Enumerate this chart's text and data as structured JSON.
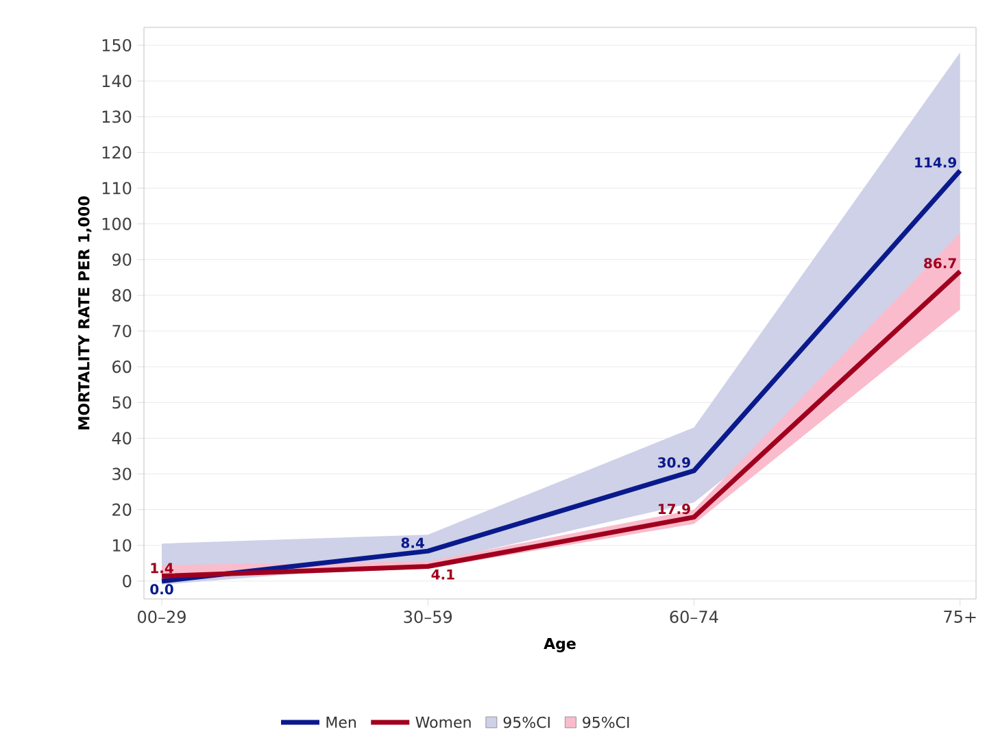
{
  "chart_data": {
    "type": "line",
    "xlabel": "Age",
    "ylabel": "MORTALITY RATE PER 1,000",
    "categories": [
      "00–29",
      "30–59",
      "60–74",
      "75+"
    ],
    "series": [
      {
        "name": "Men",
        "color": "#0a1a8c",
        "values": [
          0.0,
          8.4,
          30.9,
          114.9
        ],
        "value_labels": [
          "0.0",
          "8.4",
          "30.9",
          "114.9"
        ],
        "lower": [
          -1,
          5,
          22,
          82
        ],
        "upper": [
          10.5,
          13,
          43,
          148
        ]
      },
      {
        "name": "Women",
        "color": "#a0001e",
        "values": [
          1.4,
          4.1,
          17.9,
          86.7
        ],
        "value_labels": [
          "1.4",
          "4.1",
          "17.9",
          "86.7"
        ],
        "lower": [
          0.5,
          3.5,
          16,
          76
        ],
        "upper": [
          4.5,
          5.5,
          20,
          97.5
        ]
      }
    ],
    "annotations": [
      "95%CI",
      "95%CI"
    ],
    "ylim": [
      -5,
      155
    ],
    "yticks": [
      0,
      10,
      20,
      30,
      40,
      50,
      60,
      70,
      80,
      90,
      100,
      110,
      120,
      130,
      140,
      150
    ],
    "grid": "y",
    "legend": "bottom",
    "marker": "none",
    "line_style": "solid"
  }
}
